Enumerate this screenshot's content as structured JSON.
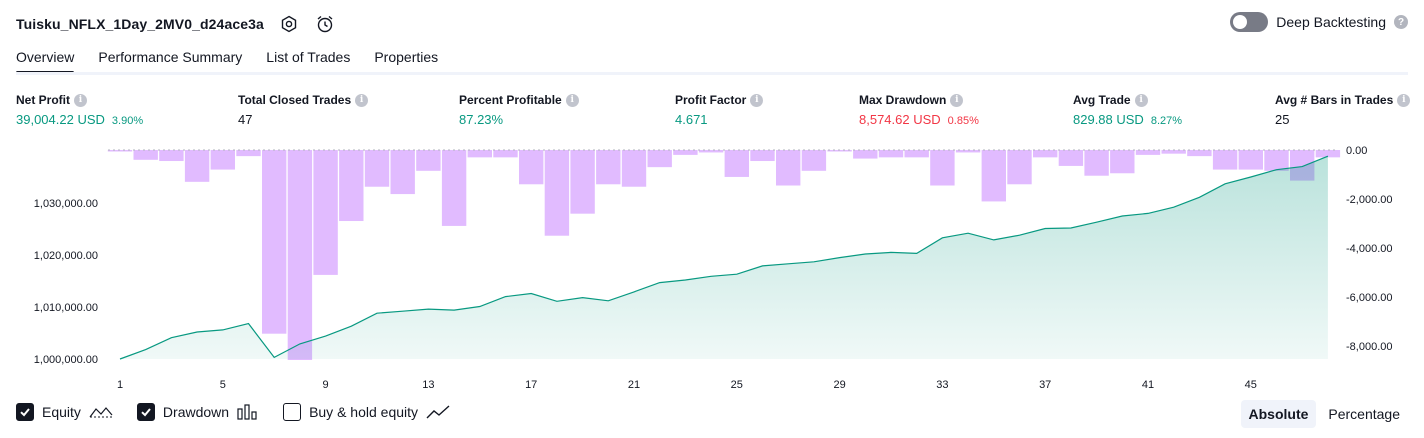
{
  "header": {
    "strategy_name": "Tuisku_NFLX_1Day_2MV0_d24ace3a",
    "deep_backtesting_label": "Deep Backtesting",
    "deep_backtesting_enabled": false
  },
  "tabs": [
    {
      "label": "Overview",
      "active": true
    },
    {
      "label": "Performance Summary",
      "active": false
    },
    {
      "label": "List of Trades",
      "active": false
    },
    {
      "label": "Properties",
      "active": false
    }
  ],
  "metrics": [
    {
      "label": "Net Profit",
      "value": "39,004.22 USD",
      "percent": "3.90%",
      "color": "green"
    },
    {
      "label": "Total Closed Trades",
      "value": "47",
      "percent": "",
      "color": "dark"
    },
    {
      "label": "Percent Profitable",
      "value": "87.23%",
      "percent": "",
      "color": "green"
    },
    {
      "label": "Profit Factor",
      "value": "4.671",
      "percent": "",
      "color": "green"
    },
    {
      "label": "Max Drawdown",
      "value": "8,574.62 USD",
      "percent": "0.85%",
      "color": "red"
    },
    {
      "label": "Avg Trade",
      "value": "829.88 USD",
      "percent": "8.27%",
      "color": "green"
    },
    {
      "label": "Avg # Bars in Trades",
      "value": "25",
      "percent": "",
      "color": "dark"
    }
  ],
  "chart_data": {
    "type": "area",
    "x_ticks": [
      "1",
      "5",
      "9",
      "13",
      "17",
      "21",
      "25",
      "29",
      "33",
      "37",
      "41",
      "45"
    ],
    "left_axis": {
      "ticks": [
        "1,000,000.00",
        "1,010,000.00",
        "1,020,000.00",
        "1,030,000.00"
      ],
      "range": [
        1000000,
        1040000
      ]
    },
    "right_axis": {
      "ticks": [
        "0.00",
        "-2,000.00",
        "-4,000.00",
        "-6,000.00",
        "-8,000.00"
      ],
      "range": [
        -8600,
        0
      ]
    },
    "series": [
      {
        "name": "Equity",
        "axis": "left",
        "color": "#089981",
        "x": [
          1,
          2,
          3,
          4,
          5,
          6,
          7,
          8,
          9,
          10,
          11,
          12,
          13,
          14,
          15,
          16,
          17,
          18,
          19,
          20,
          21,
          22,
          23,
          24,
          25,
          26,
          27,
          28,
          29,
          30,
          31,
          32,
          33,
          34,
          35,
          36,
          37,
          38,
          39,
          40,
          41,
          42,
          43,
          44,
          45,
          46,
          47,
          48
        ],
        "values": [
          1000000,
          1001800,
          1004100,
          1005200,
          1005600,
          1006800,
          1000300,
          1002900,
          1004400,
          1006300,
          1008800,
          1009200,
          1009600,
          1009400,
          1010100,
          1012000,
          1012600,
          1011100,
          1011800,
          1011200,
          1012900,
          1014700,
          1015200,
          1015900,
          1016300,
          1017900,
          1018300,
          1018700,
          1019500,
          1020200,
          1020500,
          1020300,
          1023300,
          1024200,
          1022900,
          1023800,
          1025100,
          1025200,
          1026300,
          1027500,
          1028000,
          1029200,
          1031100,
          1033700,
          1035000,
          1036400,
          1037000,
          1039000
        ]
      },
      {
        "name": "Drawdown",
        "axis": "right",
        "color": "#e1bbff",
        "x": [
          1,
          2,
          3,
          4,
          5,
          6,
          7,
          8,
          9,
          10,
          11,
          12,
          13,
          14,
          15,
          16,
          17,
          18,
          19,
          20,
          21,
          22,
          23,
          24,
          25,
          26,
          27,
          28,
          29,
          30,
          31,
          32,
          33,
          34,
          35,
          36,
          37,
          38,
          39,
          40,
          41,
          42,
          43,
          44,
          45,
          46,
          47,
          48
        ],
        "values": [
          0,
          -400,
          -450,
          -1300,
          -800,
          -250,
          -7500,
          -8574.62,
          -5100,
          -2900,
          -1500,
          -1800,
          -850,
          -3100,
          -300,
          -300,
          -1400,
          -3500,
          -2600,
          -1400,
          -1500,
          -700,
          -200,
          -100,
          -1100,
          -450,
          -1450,
          -850,
          -50,
          -350,
          -300,
          -300,
          -1450,
          -100,
          -2100,
          -1400,
          -300,
          -650,
          -1050,
          -950,
          -200,
          -150,
          -250,
          -800,
          -800,
          -850,
          -1250,
          -300
        ]
      }
    ]
  },
  "legend": {
    "equity": {
      "label": "Equity",
      "checked": true
    },
    "drawdown": {
      "label": "Drawdown",
      "checked": true
    },
    "buy_hold": {
      "label": "Buy & hold equity",
      "checked": false
    }
  },
  "mode": {
    "absolute": "Absolute",
    "percentage": "Percentage",
    "selected": "Absolute"
  }
}
